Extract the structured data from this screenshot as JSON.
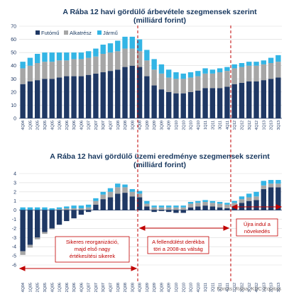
{
  "colors": {
    "futomu": "#1f3864",
    "alkatresz": "#a6a6a6",
    "jarmu": "#33b5e5",
    "annotation": "#c00000",
    "axis": "#1f3864",
    "grid": "#d9d9d9"
  },
  "source": "Forrás: Rába, KBC Equitas",
  "chart_data": [
    {
      "type": "bar",
      "stacked": true,
      "title_line1": "A Rába 12 havi gördülő árbevétele  szegmensek szerint",
      "title_line2": "(milliárd forint)",
      "ylim": [
        0,
        70
      ],
      "yticks": [
        0,
        10,
        20,
        30,
        40,
        50,
        60,
        70
      ],
      "legend": [
        "Futómű",
        "Alkatrész",
        "Jármű"
      ],
      "legend_position": "top-left",
      "categories": [
        "4Q04",
        "1Q05",
        "2Q05",
        "3Q05",
        "4Q05",
        "1Q06",
        "2Q06",
        "3Q06",
        "4Q06",
        "1Q07",
        "2Q07",
        "3Q07",
        "4Q07",
        "1Q08",
        "2Q08",
        "3Q08",
        "4Q08",
        "1Q09",
        "2Q09",
        "3Q09",
        "4Q09",
        "1Q10",
        "2Q10",
        "3Q10",
        "4Q10",
        "1Q11",
        "2Q11",
        "3Q11",
        "4Q11",
        "1Q12",
        "2Q12",
        "3Q12",
        "4Q12",
        "1Q13",
        "2Q13",
        "3Q13"
      ],
      "series": [
        {
          "name": "Futómű",
          "values": [
            26,
            28,
            29,
            30,
            30,
            31,
            32,
            32,
            32,
            33,
            34,
            35,
            36,
            37,
            39,
            40,
            39,
            32,
            25,
            22,
            20,
            19,
            19,
            20,
            21,
            23,
            23,
            23,
            24,
            26,
            27,
            28,
            28,
            29,
            30,
            31
          ]
        },
        {
          "name": "Alkatrész",
          "values": [
            12,
            12,
            13,
            13,
            13,
            13,
            12,
            13,
            13,
            13,
            13,
            14,
            14,
            14,
            14,
            13,
            12,
            12,
            12,
            12,
            11,
            11,
            11,
            11,
            11,
            11,
            11,
            12,
            12,
            12,
            12,
            12,
            12,
            12,
            12,
            12
          ]
        },
        {
          "name": "Jármű",
          "values": [
            5,
            6,
            7,
            7,
            7,
            6,
            6,
            5,
            5,
            5,
            6,
            7,
            7,
            8,
            9,
            9,
            9,
            8,
            8,
            7,
            6,
            5,
            4,
            4,
            4,
            4,
            3,
            3,
            3,
            3,
            3,
            3,
            3,
            3,
            4,
            5
          ]
        }
      ]
    },
    {
      "type": "bar",
      "stacked": true,
      "title_line1": "A Rába  12 havi gördülő üzemi eredménye  szegmensek szerint",
      "title_line2": "(milliárd forint)",
      "ylim": [
        -6,
        4
      ],
      "yticks": [
        -6,
        -5,
        -4,
        -3,
        -2,
        -1,
        0,
        1,
        2,
        3,
        4
      ],
      "categories": [
        "4Q04",
        "1Q05",
        "2Q05",
        "3Q05",
        "4Q05",
        "1Q06",
        "2Q06",
        "3Q06",
        "4Q06",
        "1Q07",
        "2Q07",
        "3Q07",
        "4Q07",
        "1Q08",
        "2Q08",
        "3Q08",
        "4Q08",
        "1Q09",
        "2Q09",
        "3Q09",
        "4Q09",
        "1Q10",
        "2Q10",
        "3Q10",
        "4Q10",
        "1Q11",
        "2Q11",
        "3Q11",
        "4Q11",
        "1Q12",
        "2Q12",
        "3Q12",
        "4Q12",
        "1Q13",
        "2Q13",
        "3Q13"
      ],
      "series": [
        {
          "name": "Futómű",
          "values": [
            -4.5,
            -3.8,
            -3.0,
            -2.4,
            -2.0,
            -1.6,
            -1.2,
            -0.9,
            -0.5,
            -0.2,
            0.6,
            1.2,
            1.4,
            1.8,
            1.9,
            1.5,
            1.4,
            0.4,
            -0.2,
            -0.1,
            -0.2,
            -0.3,
            -0.3,
            0.3,
            0.4,
            0.5,
            0.4,
            0.3,
            0.2,
            0.4,
            0.8,
            1.0,
            1.1,
            2.3,
            2.5,
            2.5
          ]
        },
        {
          "name": "Alkatrész",
          "values": [
            -0.4,
            -0.3,
            -0.2,
            -0.2,
            -0.1,
            0.1,
            0.2,
            0.2,
            0.2,
            0.3,
            0.4,
            0.5,
            0.6,
            0.7,
            0.6,
            0.5,
            0.4,
            0.3,
            0.3,
            0.3,
            0.3,
            0.3,
            0.3,
            0.4,
            0.4,
            0.4,
            0.4,
            0.4,
            0.4,
            0.4,
            0.4,
            0.4,
            0.4,
            0.4,
            0.4,
            0.4
          ]
        },
        {
          "name": "Jármű",
          "values": [
            0.3,
            0.3,
            0.3,
            0.3,
            0.2,
            0.2,
            0.2,
            0.3,
            0.3,
            0.3,
            0.3,
            0.3,
            0.4,
            0.4,
            0.3,
            0.3,
            0.3,
            0.3,
            0.2,
            0.2,
            0.2,
            0.2,
            0.2,
            0.2,
            0.2,
            0.2,
            0.2,
            0.2,
            0.2,
            0.2,
            0.3,
            0.4,
            0.5,
            0.5,
            0.4,
            0.4
          ]
        }
      ],
      "annotations": {
        "box1": [
          "Sikeres reorganizáció,",
          "majd első nagy",
          "értékesítési sikerek"
        ],
        "box2": [
          "A fellendülést derékba",
          "töri a 2008-as válság"
        ],
        "box3": [
          "Újra indul a",
          "növekedés"
        ]
      }
    }
  ]
}
